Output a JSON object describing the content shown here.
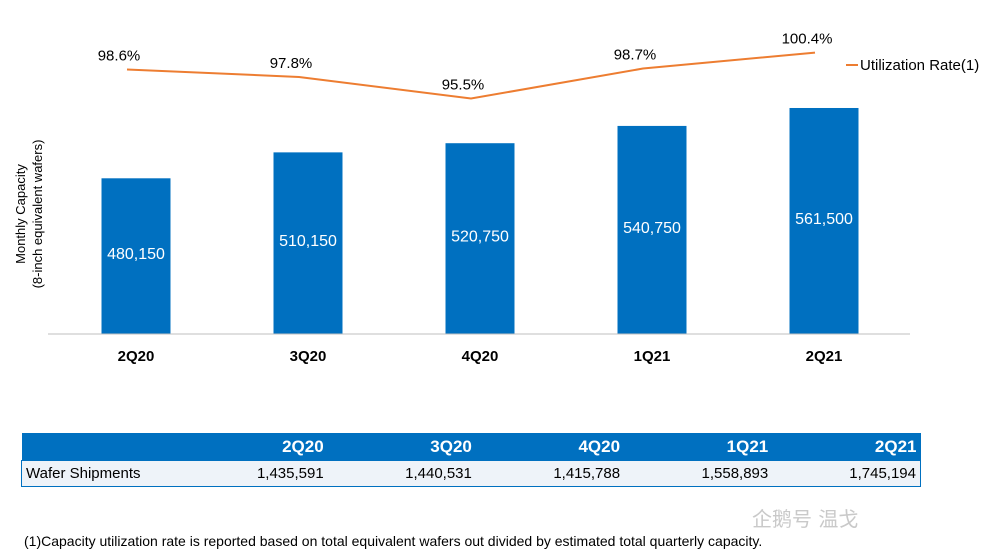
{
  "chart_data": {
    "type": "bar",
    "categories": [
      "2Q20",
      "3Q20",
      "4Q20",
      "1Q21",
      "2Q21"
    ],
    "values": [
      480150,
      510150,
      520750,
      540750,
      561500
    ],
    "value_labels": [
      "480,150",
      "510,150",
      "520,750",
      "540,750",
      "561,500"
    ],
    "ylabel": "Monthly Capacity",
    "ylabel_sub": "(8-inch equivalent wafers)",
    "line_series": {
      "name": "Utilization Rate(1)",
      "values": [
        98.6,
        97.8,
        95.5,
        98.7,
        100.4
      ],
      "labels": [
        "98.6%",
        "97.8%",
        "95.5%",
        "98.7%",
        "100.4%"
      ],
      "color": "#ED7D31"
    },
    "bar_color": "#0070C0",
    "legend_position": "top-right"
  },
  "table": {
    "headers": [
      "",
      "2Q20",
      "3Q20",
      "4Q20",
      "1Q21",
      "2Q21"
    ],
    "row_label": "Wafer Shipments",
    "values": [
      "1,435,591",
      "1,440,531",
      "1,415,788",
      "1,558,893",
      "1,745,194"
    ]
  },
  "footnote": "(1)Capacity utilization rate is reported based on total equivalent wafers out divided by estimated total quarterly capacity.",
  "watermark": "企鹅号 温戈"
}
